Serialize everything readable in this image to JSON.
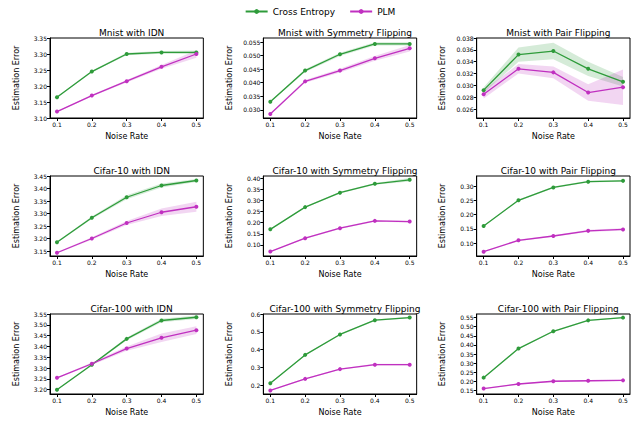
{
  "chart_data": [
    {
      "type": "line",
      "title": "Mnist with IDN",
      "x_label": "Noise Rate",
      "y_label": "Estimation Error",
      "x": [
        0.1,
        0.2,
        0.3,
        0.4,
        0.5
      ],
      "xlim": [
        0.08,
        0.52
      ],
      "xticks": [
        0.1,
        0.2,
        0.3,
        0.4,
        0.5
      ],
      "ylim": [
        3.1,
        3.35
      ],
      "yticks": [
        {
          "value": 3.1,
          "label": "3.10"
        },
        3.15,
        {
          "value": 3.2,
          "label": "3.20"
        },
        3.25,
        {
          "value": 3.3,
          "label": "3.30"
        },
        3.35
      ],
      "grid": false,
      "legend": "top",
      "series": [
        {
          "name": "Cross Entropy",
          "color": "#2e9b3a",
          "marker": "o",
          "values": [
            3.165,
            3.245,
            3.3,
            3.305,
            3.305
          ],
          "errors": [
            0.002,
            0.003,
            0.004,
            0.004,
            0.006
          ]
        },
        {
          "name": "PLM",
          "color": "#c030c0",
          "marker": "o",
          "values": [
            3.12,
            3.17,
            3.215,
            3.26,
            3.3
          ],
          "errors": [
            0.002,
            0.003,
            0.004,
            0.006,
            0.012
          ]
        }
      ]
    },
    {
      "type": "line",
      "title": "Mnist with Symmetry Flipping",
      "x_label": "Noise Rate",
      "y_label": "Estimation Error",
      "x": [
        0.1,
        0.2,
        0.3,
        0.4,
        0.5
      ],
      "xlim": [
        0.08,
        0.52
      ],
      "xticks": [
        0.1,
        0.2,
        0.3,
        0.4,
        0.5
      ],
      "ylim": [
        0.027,
        0.0565
      ],
      "yticks": [
        {
          "value": 0.03,
          "label": "0.030"
        },
        0.035,
        {
          "value": 0.04,
          "label": "0.040"
        },
        0.045,
        {
          "value": 0.05,
          "label": "0.050"
        },
        0.055
      ],
      "grid": false,
      "legend": "top",
      "series": [
        {
          "name": "Cross Entropy",
          "color": "#2e9b3a",
          "marker": "o",
          "values": [
            0.033,
            0.0445,
            0.0505,
            0.0543,
            0.0543
          ],
          "errors": [
            0.0003,
            0.0005,
            0.0006,
            0.0006,
            0.0006
          ]
        },
        {
          "name": "PLM",
          "color": "#c030c0",
          "marker": "o",
          "values": [
            0.0285,
            0.0405,
            0.0445,
            0.049,
            0.0527
          ],
          "errors": [
            0.0003,
            0.0005,
            0.0007,
            0.0009,
            0.0012
          ]
        }
      ]
    },
    {
      "type": "line",
      "title": "Mnist with Pair Flipping",
      "x_label": "Noise Rate",
      "y_label": "Estimation Error",
      "x": [
        0.1,
        0.2,
        0.3,
        0.4,
        0.5
      ],
      "xlim": [
        0.08,
        0.52
      ],
      "xticks": [
        0.1,
        0.2,
        0.3,
        0.4,
        0.5
      ],
      "ylim": [
        0.0245,
        0.038
      ],
      "yticks": [
        0.026,
        0.028,
        {
          "value": 0.03,
          "label": "0.030"
        },
        0.032,
        0.034,
        0.036,
        0.038
      ],
      "grid": false,
      "legend": "top",
      "series": [
        {
          "name": "Cross Entropy",
          "color": "#2e9b3a",
          "marker": "o",
          "values": [
            0.0292,
            0.0352,
            0.0358,
            0.0328,
            0.0306
          ],
          "errors": [
            0.0005,
            0.0012,
            0.0014,
            0.0012,
            0.0008
          ]
        },
        {
          "name": "PLM",
          "color": "#c030c0",
          "marker": "o",
          "values": [
            0.0285,
            0.0328,
            0.0322,
            0.0288,
            0.0297
          ],
          "errors": [
            0.0007,
            0.0008,
            0.001,
            0.0014,
            0.003
          ]
        }
      ]
    },
    {
      "type": "line",
      "title": "Cifar-10 with IDN",
      "x_label": "Noise Rate",
      "y_label": "Estimation Error",
      "x": [
        0.1,
        0.2,
        0.3,
        0.4,
        0.5
      ],
      "xlim": [
        0.08,
        0.52
      ],
      "xticks": [
        0.1,
        0.2,
        0.3,
        0.4,
        0.5
      ],
      "ylim": [
        3.13,
        3.45
      ],
      "yticks": [
        3.15,
        {
          "value": 3.2,
          "label": "3.20"
        },
        3.25,
        {
          "value": 3.3,
          "label": "3.30"
        },
        3.35,
        {
          "value": 3.4,
          "label": "3.40"
        },
        3.45
      ],
      "grid": false,
      "legend": "top",
      "series": [
        {
          "name": "Cross Entropy",
          "color": "#2e9b3a",
          "marker": "o",
          "values": [
            3.185,
            3.283,
            3.365,
            3.412,
            3.432
          ],
          "errors": [
            0.003,
            0.005,
            0.008,
            0.008,
            0.006
          ]
        },
        {
          "name": "PLM",
          "color": "#c030c0",
          "marker": "o",
          "values": [
            3.143,
            3.2,
            3.262,
            3.305,
            3.327
          ],
          "errors": [
            0.003,
            0.005,
            0.008,
            0.015,
            0.02
          ]
        }
      ]
    },
    {
      "type": "line",
      "title": "Cifar-10 with Symmetry Flipping",
      "x_label": "Noise Rate",
      "y_label": "Estimation Error",
      "x": [
        0.1,
        0.2,
        0.3,
        0.4,
        0.5
      ],
      "xlim": [
        0.08,
        0.52
      ],
      "xticks": [
        0.1,
        0.2,
        0.3,
        0.4,
        0.5
      ],
      "ylim": [
        0.05,
        0.41
      ],
      "yticks": [
        {
          "value": 0.1,
          "label": "0.10"
        },
        0.15,
        {
          "value": 0.2,
          "label": "0.20"
        },
        0.25,
        {
          "value": 0.3,
          "label": "0.30"
        },
        0.35,
        {
          "value": 0.4,
          "label": "0.40"
        }
      ],
      "grid": false,
      "legend": "top",
      "series": [
        {
          "name": "Cross Entropy",
          "color": "#2e9b3a",
          "marker": "o",
          "values": [
            0.17,
            0.27,
            0.335,
            0.375,
            0.393
          ],
          "errors": [
            0.003,
            0.003,
            0.004,
            0.004,
            0.008
          ]
        },
        {
          "name": "PLM",
          "color": "#c030c0",
          "marker": "o",
          "values": [
            0.07,
            0.13,
            0.175,
            0.208,
            0.205
          ],
          "errors": [
            0.002,
            0.003,
            0.004,
            0.004,
            0.004
          ]
        }
      ]
    },
    {
      "type": "line",
      "title": "Cifar-10 with Pair Flipping",
      "x_label": "Noise Rate",
      "y_label": "Estimation Error",
      "x": [
        0.1,
        0.2,
        0.3,
        0.4,
        0.5
      ],
      "xlim": [
        0.08,
        0.52
      ],
      "xticks": [
        0.1,
        0.2,
        0.3,
        0.4,
        0.5
      ],
      "ylim": [
        0.055,
        0.335
      ],
      "yticks": [
        {
          "value": 0.1,
          "label": "0.10"
        },
        0.15,
        {
          "value": 0.2,
          "label": "0.20"
        },
        0.25,
        {
          "value": 0.3,
          "label": "0.30"
        }
      ],
      "grid": false,
      "legend": "top",
      "series": [
        {
          "name": "Cross Entropy",
          "color": "#2e9b3a",
          "marker": "o",
          "values": [
            0.16,
            0.25,
            0.295,
            0.315,
            0.318
          ],
          "errors": [
            0.002,
            0.003,
            0.003,
            0.003,
            0.003
          ]
        },
        {
          "name": "PLM",
          "color": "#c030c0",
          "marker": "o",
          "values": [
            0.07,
            0.11,
            0.125,
            0.143,
            0.148
          ],
          "errors": [
            0.002,
            0.003,
            0.003,
            0.004,
            0.004
          ]
        }
      ]
    },
    {
      "type": "line",
      "title": "Cifar-100 with IDN",
      "x_label": "Noise Rate",
      "y_label": "Estimation Error",
      "x": [
        0.1,
        0.2,
        0.3,
        0.4,
        0.5
      ],
      "xlim": [
        0.08,
        0.52
      ],
      "xticks": [
        0.1,
        0.2,
        0.3,
        0.4,
        0.5
      ],
      "ylim": [
        3.18,
        3.55
      ],
      "yticks": [
        {
          "value": 3.2,
          "label": "3.20"
        },
        3.25,
        {
          "value": 3.3,
          "label": "3.30"
        },
        3.35,
        {
          "value": 3.4,
          "label": "3.40"
        },
        3.45,
        {
          "value": 3.5,
          "label": "3.50"
        },
        3.55
      ],
      "grid": false,
      "legend": "top",
      "series": [
        {
          "name": "Cross Entropy",
          "color": "#2e9b3a",
          "marker": "o",
          "values": [
            3.2,
            3.315,
            3.435,
            3.52,
            3.535
          ],
          "errors": [
            0.003,
            0.004,
            0.006,
            0.008,
            0.008
          ]
        },
        {
          "name": "PLM",
          "color": "#c030c0",
          "marker": "o",
          "values": [
            3.255,
            3.32,
            3.39,
            3.44,
            3.475
          ],
          "errors": [
            0.003,
            0.006,
            0.01,
            0.02,
            0.018
          ]
        }
      ]
    },
    {
      "type": "line",
      "title": "Cifar-100 with Symmetry Flipping",
      "x_label": "Noise Rate",
      "y_label": "Estimation Error",
      "x": [
        0.1,
        0.2,
        0.3,
        0.4,
        0.5
      ],
      "xlim": [
        0.08,
        0.52
      ],
      "xticks": [
        0.1,
        0.2,
        0.3,
        0.4,
        0.5
      ],
      "ylim": [
        0.15,
        0.6
      ],
      "yticks": [
        0.2,
        0.3,
        0.4,
        0.5,
        0.6
      ],
      "grid": false,
      "legend": "top",
      "series": [
        {
          "name": "Cross Entropy",
          "color": "#2e9b3a",
          "marker": "o",
          "values": [
            0.21,
            0.37,
            0.485,
            0.565,
            0.58
          ],
          "errors": [
            0.004,
            0.004,
            0.004,
            0.004,
            0.004
          ]
        },
        {
          "name": "PLM",
          "color": "#c030c0",
          "marker": "o",
          "values": [
            0.17,
            0.235,
            0.29,
            0.315,
            0.315
          ],
          "errors": [
            0.003,
            0.003,
            0.004,
            0.005,
            0.005
          ]
        }
      ]
    },
    {
      "type": "line",
      "title": "Cifar-100 with Pair Flipping",
      "x_label": "Noise Rate",
      "y_label": "Estimation Error",
      "x": [
        0.1,
        0.2,
        0.3,
        0.4,
        0.5
      ],
      "xlim": [
        0.08,
        0.52
      ],
      "xticks": [
        0.1,
        0.2,
        0.3,
        0.4,
        0.5
      ],
      "ylim": [
        0.13,
        0.57
      ],
      "yticks": [
        0.15,
        {
          "value": 0.2,
          "label": "0.20"
        },
        0.25,
        {
          "value": 0.3,
          "label": "0.30"
        },
        0.35,
        {
          "value": 0.4,
          "label": "0.40"
        },
        0.45,
        {
          "value": 0.5,
          "label": "0.50"
        },
        0.55
      ],
      "grid": false,
      "legend": "top",
      "series": [
        {
          "name": "Cross Entropy",
          "color": "#2e9b3a",
          "marker": "o",
          "values": [
            0.22,
            0.38,
            0.475,
            0.535,
            0.55
          ],
          "errors": [
            0.004,
            0.004,
            0.004,
            0.004,
            0.004
          ]
        },
        {
          "name": "PLM",
          "color": "#c030c0",
          "marker": "o",
          "values": [
            0.16,
            0.185,
            0.2,
            0.203,
            0.205
          ],
          "errors": [
            0.003,
            0.003,
            0.004,
            0.004,
            0.004
          ]
        }
      ]
    }
  ]
}
